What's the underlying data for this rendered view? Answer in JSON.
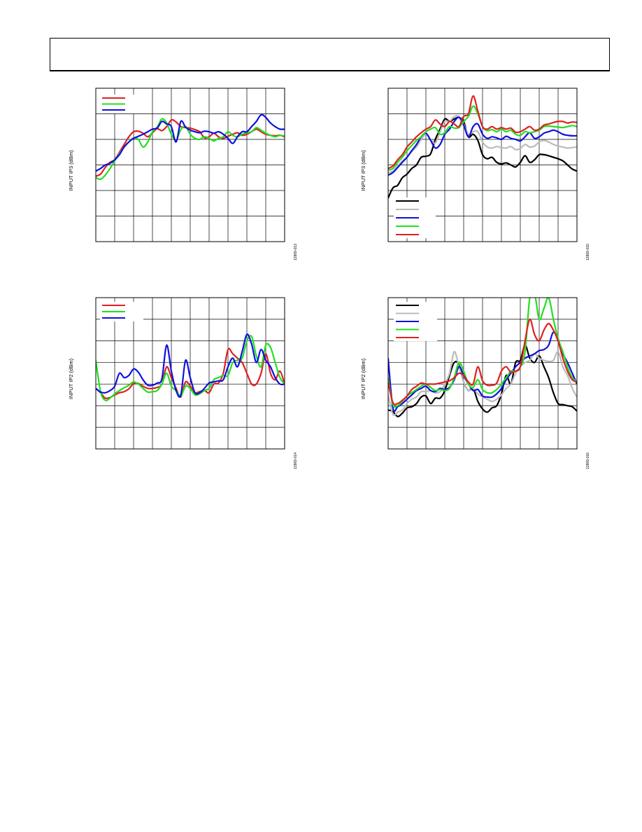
{
  "page": {
    "header": ""
  },
  "chart_data": [
    {
      "type": "line",
      "ylabel": "INPUT IP3 (dBm)",
      "figure_id": "12869-013",
      "grid": true,
      "x": [
        0,
        1,
        2,
        3,
        4,
        5,
        6,
        7,
        8,
        9,
        10,
        11,
        12,
        13,
        14,
        15,
        16,
        17,
        18,
        19,
        20,
        21,
        22,
        23,
        24,
        25,
        26,
        27,
        28,
        29,
        30,
        31,
        32,
        33,
        34,
        35,
        36,
        37,
        38,
        39,
        40
      ],
      "xlim": [
        0,
        40
      ],
      "ylim": [
        0,
        30
      ],
      "series": [
        {
          "name": "",
          "color": "#e02020",
          "values": [
            12.8,
            13.2,
            14.5,
            15.5,
            16.0,
            17.5,
            19.0,
            20.5,
            21.5,
            21.6,
            21.2,
            20.5,
            21.3,
            22.1,
            21.7,
            22.5,
            23.8,
            23.4,
            22.5,
            22.3,
            22.2,
            21.9,
            21.5,
            20.3,
            20.5,
            21.2,
            20.5,
            20.2,
            20.6,
            21.0,
            21.3,
            20.8,
            21.0,
            21.5,
            22.0,
            21.5,
            21.0,
            20.8,
            20.7,
            20.8,
            20.5
          ]
        },
        {
          "name": "",
          "color": "#20e020",
          "values": [
            12.5,
            12.2,
            13.0,
            14.3,
            15.8,
            17.2,
            18.5,
            19.5,
            20.3,
            20.0,
            18.5,
            19.5,
            21.5,
            22.4,
            24.0,
            23.2,
            21.0,
            19.8,
            21.9,
            22.5,
            21.0,
            20.2,
            20.0,
            20.5,
            20.2,
            19.7,
            20.2,
            20.5,
            21.5,
            20.8,
            20.5,
            21.0,
            21.3,
            21.5,
            22.3,
            21.8,
            21.2,
            20.8,
            20.5,
            20.8,
            20.6
          ]
        },
        {
          "name": "",
          "color": "#1010e0",
          "values": [
            13.8,
            14.3,
            15.0,
            15.3,
            16.0,
            17.0,
            18.5,
            19.5,
            20.2,
            20.6,
            21.0,
            21.5,
            22.0,
            22.2,
            23.5,
            23.0,
            22.5,
            19.5,
            23.5,
            22.4,
            21.8,
            21.5,
            21.3,
            21.6,
            21.5,
            21.2,
            21.5,
            21.0,
            20.2,
            19.2,
            20.5,
            21.5,
            21.5,
            22.5,
            23.5,
            24.8,
            24.3,
            23.2,
            22.5,
            22.0,
            22.0
          ]
        }
      ]
    },
    {
      "type": "line",
      "ylabel": "INPUT IP3 (dBm)",
      "figure_id": "12869-015",
      "grid": true,
      "x": [
        0,
        1,
        2,
        3,
        4,
        5,
        6,
        7,
        8,
        9,
        10,
        11,
        12,
        13,
        14,
        15,
        16,
        17,
        18,
        19,
        20,
        21,
        22,
        23,
        24,
        25,
        26,
        27,
        28,
        29,
        30,
        31,
        32,
        33,
        34,
        35,
        36,
        37,
        38,
        39,
        40
      ],
      "xlim": [
        0,
        40
      ],
      "ylim": [
        0,
        30
      ],
      "series": [
        {
          "name": "",
          "color": "#000000",
          "values": [
            8.5,
            10.5,
            11.0,
            12.5,
            13.2,
            14.3,
            15.0,
            16.5,
            16.7,
            17.2,
            20.0,
            22.0,
            24.0,
            23.5,
            24.0,
            24.3,
            23.5,
            20.5,
            21.0,
            19.8,
            17.0,
            16.2,
            16.5,
            15.5,
            15.2,
            15.4,
            15.0,
            14.6,
            15.5,
            16.8,
            15.5,
            16.0,
            17.0,
            17.0,
            16.8,
            16.5,
            16.2,
            15.8,
            15.0,
            14.2,
            13.8
          ]
        },
        {
          "name": "",
          "color": "#bbbbbb",
          "values": [
            13.5,
            13.8,
            14.8,
            15.8,
            16.5,
            17.6,
            18.5,
            20.0,
            21.0,
            20.0,
            19.3,
            21.5,
            23.5,
            23.5,
            24.5,
            24.5,
            23.0,
            21.0,
            21.5,
            21.5,
            19.5,
            18.5,
            18.3,
            18.6,
            18.4,
            18.3,
            18.6,
            18.0,
            18.2,
            19.0,
            18.5,
            18.7,
            19.5,
            19.8,
            19.5,
            19.0,
            18.7,
            18.5,
            18.3,
            18.4,
            18.5
          ]
        },
        {
          "name": "",
          "color": "#1010e0",
          "values": [
            13.0,
            13.5,
            14.5,
            15.5,
            16.5,
            17.8,
            19.0,
            20.5,
            21.2,
            19.8,
            18.3,
            19.0,
            21.0,
            22.0,
            23.5,
            24.3,
            22.8,
            20.5,
            22.5,
            23.0,
            21.0,
            20.2,
            20.5,
            20.3,
            20.0,
            20.6,
            20.2,
            20.0,
            19.7,
            20.5,
            21.3,
            20.2,
            20.5,
            21.2,
            21.5,
            21.8,
            21.5,
            21.0,
            20.8,
            20.7,
            20.7
          ]
        },
        {
          "name": "",
          "color": "#20e020",
          "values": [
            14.0,
            14.3,
            15.5,
            16.5,
            17.8,
            18.8,
            19.8,
            20.5,
            21.5,
            22.0,
            22.3,
            21.0,
            21.3,
            22.5,
            22.2,
            22.3,
            23.5,
            24.5,
            26.5,
            25.0,
            22.5,
            21.7,
            21.9,
            21.5,
            22.0,
            21.5,
            21.8,
            21.0,
            20.8,
            21.5,
            21.3,
            21.5,
            21.8,
            22.5,
            22.6,
            22.5,
            22.4,
            22.3,
            22.5,
            22.7,
            22.5
          ]
        },
        {
          "name": "",
          "color": "#e02020",
          "values": [
            14.3,
            14.8,
            16.0,
            17.0,
            18.5,
            19.5,
            20.5,
            21.3,
            22.0,
            22.5,
            23.8,
            23.0,
            22.5,
            23.5,
            23.0,
            22.5,
            24.5,
            25.0,
            28.5,
            25.5,
            22.5,
            22.0,
            22.5,
            22.0,
            22.3,
            22.0,
            22.2,
            21.4,
            21.5,
            22.0,
            22.5,
            21.8,
            22.0,
            22.8,
            23.0,
            23.3,
            23.5,
            23.5,
            23.2,
            23.4,
            23.3
          ]
        }
      ]
    },
    {
      "type": "line",
      "ylabel": "INPUT IP2 (dBm)",
      "figure_id": "12869-014",
      "grid": true,
      "x": [
        0,
        1,
        2,
        3,
        4,
        5,
        6,
        7,
        8,
        9,
        10,
        11,
        12,
        13,
        14,
        15,
        16,
        17,
        18,
        19,
        20,
        21,
        22,
        23,
        24,
        25,
        26,
        27,
        28,
        29,
        30,
        31,
        32,
        33,
        34,
        35,
        36,
        37,
        38,
        39,
        40
      ],
      "xlim": [
        0,
        40
      ],
      "ylim": [
        0,
        70
      ],
      "series": [
        {
          "name": "",
          "color": "#e02020",
          "values": [
            28.0,
            26.0,
            23.5,
            23.8,
            25.0,
            26.0,
            26.5,
            27.8,
            30.3,
            30.3,
            29.0,
            28.0,
            28.0,
            28.5,
            30.0,
            38.0,
            33.0,
            28.0,
            24.0,
            31.0,
            29.0,
            26.0,
            26.5,
            27.0,
            26.0,
            30.0,
            30.5,
            35.0,
            46.0,
            44.0,
            42.0,
            40.0,
            35.0,
            30.0,
            30.0,
            35.0,
            44.0,
            35.0,
            32.0,
            36.0,
            30.0
          ]
        },
        {
          "name": "",
          "color": "#20e020",
          "values": [
            41.0,
            26.5,
            22.5,
            23.5,
            25.5,
            27.0,
            28.3,
            29.5,
            31.0,
            30.0,
            28.0,
            26.3,
            26.5,
            27.0,
            30.0,
            35.0,
            29.0,
            27.0,
            24.5,
            29.0,
            28.0,
            25.0,
            25.5,
            27.0,
            28.0,
            32.0,
            33.0,
            34.0,
            34.0,
            40.0,
            41.0,
            42.0,
            50.0,
            52.0,
            43.0,
            38.0,
            48.0,
            47.0,
            40.0,
            33.0,
            30.0
          ]
        },
        {
          "name": "",
          "color": "#1010e0",
          "values": [
            28.0,
            26.3,
            26.0,
            27.0,
            29.0,
            35.0,
            33.0,
            34.0,
            37.0,
            35.5,
            32.0,
            29.5,
            29.5,
            30.5,
            32.5,
            48.0,
            36.0,
            27.0,
            25.0,
            41.0,
            33.0,
            26.0,
            26.0,
            28.0,
            30.5,
            31.0,
            31.5,
            32.0,
            38.0,
            42.0,
            38.0,
            45.0,
            53.0,
            48.5,
            40.0,
            46.0,
            41.0,
            38.0,
            33.0,
            30.0,
            30.0
          ]
        }
      ]
    },
    {
      "type": "line",
      "ylabel": "INPUT IP2 (dBm)",
      "figure_id": "12869-016",
      "grid": true,
      "x": [
        0,
        1,
        2,
        3,
        4,
        5,
        6,
        7,
        8,
        9,
        10,
        11,
        12,
        13,
        14,
        15,
        16,
        17,
        18,
        19,
        20,
        21,
        22,
        23,
        24,
        25,
        26,
        27,
        28,
        29,
        30,
        31,
        32,
        33,
        34,
        35,
        36,
        37,
        38,
        39,
        40
      ],
      "xlim": [
        0,
        40
      ],
      "ylim": [
        0,
        70
      ],
      "series": [
        {
          "name": "",
          "color": "#000000",
          "values": [
            18.0,
            17.3,
            15.0,
            16.5,
            19.0,
            19.5,
            21.0,
            24.0,
            24.5,
            21.0,
            23.5,
            23.5,
            27.0,
            34.0,
            40.0,
            39.0,
            31.0,
            27.0,
            28.0,
            22.0,
            18.5,
            17.0,
            19.0,
            20.0,
            25.5,
            34.0,
            30.0,
            40.0,
            41.0,
            48.0,
            42.0,
            40.0,
            43.0,
            38.0,
            33.0,
            26.0,
            21.0,
            20.5,
            20.0,
            19.5,
            17.5
          ]
        },
        {
          "name": "",
          "color": "#bbbbbb",
          "values": [
            25.0,
            16.0,
            17.0,
            18.0,
            21.0,
            23.0,
            24.0,
            26.5,
            26.5,
            27.0,
            26.0,
            26.5,
            30.0,
            35.0,
            45.0,
            38.0,
            31.0,
            27.0,
            28.0,
            25.5,
            24.0,
            23.0,
            22.0,
            23.0,
            25.0,
            28.0,
            30.0,
            35.0,
            38.0,
            40.0,
            41.0,
            44.0,
            42.0,
            41.0,
            40.5,
            41.0,
            45.0,
            38.0,
            34.0,
            28.0,
            24.0
          ]
        },
        {
          "name": "",
          "color": "#1010e0",
          "values": [
            42.0,
            19.0,
            19.5,
            21.0,
            23.0,
            25.0,
            27.0,
            28.0,
            29.0,
            27.0,
            26.5,
            28.0,
            27.5,
            28.5,
            32.0,
            38.0,
            34.0,
            30.0,
            27.0,
            27.5,
            24.5,
            24.0,
            24.0,
            25.5,
            28.0,
            32.0,
            35.0,
            38.0,
            40.0,
            42.0,
            43.0,
            44.0,
            45.5,
            46.0,
            48.0,
            54.0,
            50.0,
            44.0,
            40.0,
            35.0,
            30.0
          ]
        },
        {
          "name": "",
          "color": "#20e020",
          "values": [
            33.0,
            20.5,
            20.0,
            22.0,
            24.5,
            26.0,
            27.5,
            29.0,
            30.0,
            28.5,
            27.0,
            27.5,
            27.0,
            28.0,
            33.0,
            40.0,
            36.0,
            30.0,
            28.5,
            32.0,
            27.5,
            26.0,
            26.0,
            27.5,
            30.0,
            33.0,
            36.0,
            36.0,
            38.0,
            45.0,
            70.0,
            72.0,
            60.0,
            65.0,
            70.0,
            60.0,
            51.0,
            45.0,
            38.0,
            33.0,
            31.0
          ]
        },
        {
          "name": "",
          "color": "#e02020",
          "values": [
            31.0,
            21.5,
            21.0,
            22.5,
            24.5,
            27.5,
            29.0,
            30.5,
            30.0,
            30.0,
            30.0,
            30.5,
            31.0,
            31.5,
            33.0,
            35.0,
            34.0,
            31.0,
            30.0,
            38.0,
            31.5,
            29.5,
            29.5,
            30.5,
            36.0,
            38.0,
            35.5,
            36.0,
            38.0,
            50.0,
            60.0,
            53.0,
            50.0,
            55.0,
            58.0,
            55.0,
            50.0,
            42.0,
            36.0,
            32.0,
            31.0
          ]
        }
      ]
    }
  ]
}
